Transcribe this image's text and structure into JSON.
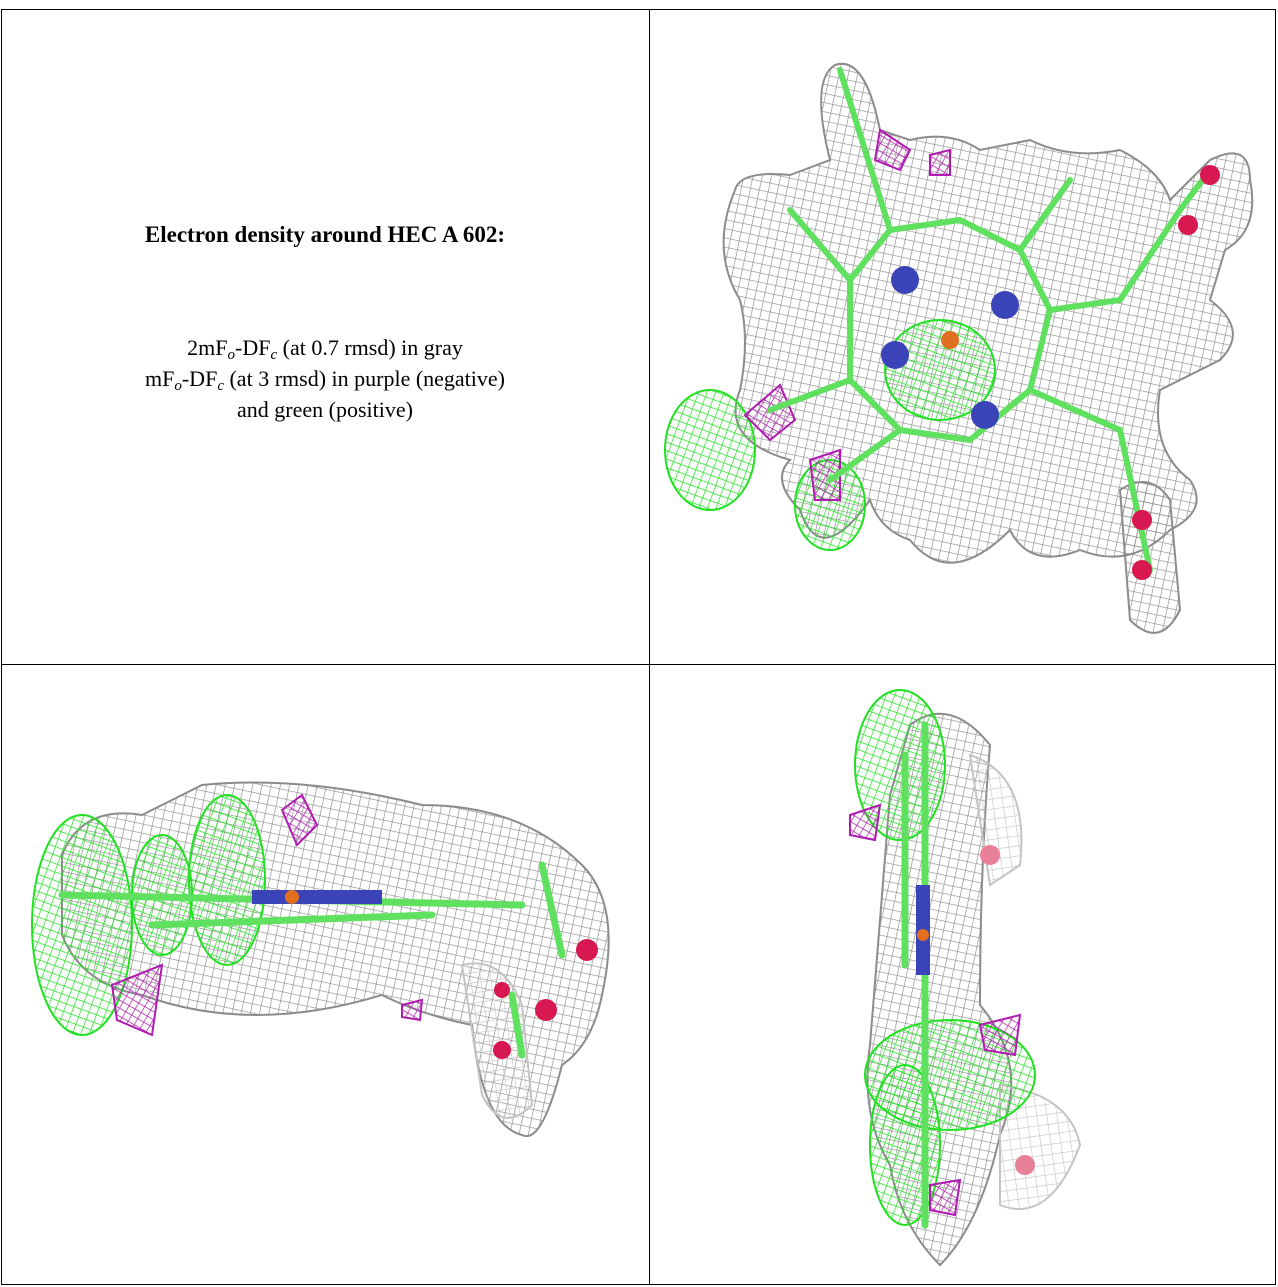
{
  "caption": {
    "title": "Electron density around HEC A 602:",
    "lines": [
      [
        "2mF",
        "o",
        "-DF",
        "c",
        " (at 0.7 rmsd) in gray"
      ],
      [
        "mF",
        "o",
        "-DF",
        "c",
        " (at 3 rmsd) in purple (negative)"
      ],
      [
        "and green (positive)"
      ]
    ]
  }
}
